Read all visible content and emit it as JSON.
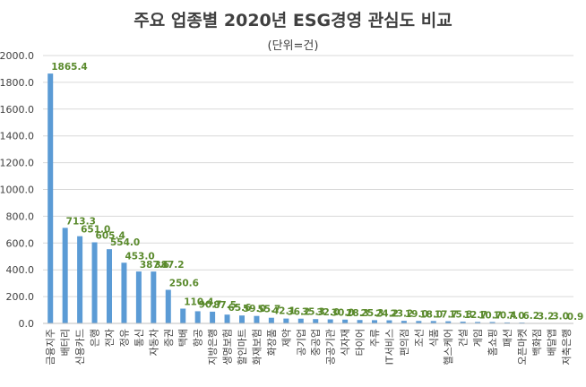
{
  "chart_data": {
    "type": "bar",
    "title": "주요 업종별 2020년 ESG경영 관심도 비교",
    "subtitle": "(단위=건)",
    "xlabel": "",
    "ylabel": "",
    "ylim": [
      0,
      2000
    ],
    "yticks": [
      "0.0",
      "200.0",
      "400.0",
      "600.0",
      "800.0",
      "1000.0",
      "1200.0",
      "1400.0",
      "1600.0",
      "1800.0",
      "2000.0"
    ],
    "grid": true,
    "legend": "none",
    "bar_color": "#5b9bd5",
    "label_color": "#5a8a2c",
    "categories": [
      "금융지주",
      "배터리",
      "신용카드",
      "은행",
      "전자",
      "정유",
      "통신",
      "자동차",
      "증권",
      "택배",
      "항공",
      "지방은행",
      "생명보험",
      "할인마트",
      "화재보험",
      "화장품",
      "제약",
      "공기업",
      "중공업",
      "공공기관",
      "식자재",
      "타이어",
      "주류",
      "IT서비스",
      "편의점",
      "조선",
      "식품",
      "헬스케어",
      "건설",
      "게임",
      "홈쇼핑",
      "패션",
      "오픈마켓",
      "백화점",
      "배달앱",
      "저축은행"
    ],
    "values": [
      1865.4,
      713.3,
      651.0,
      605.4,
      554.0,
      453.0,
      387.6,
      387.2,
      250.6,
      110.4,
      90.7,
      87.5,
      65.6,
      59.0,
      55.7,
      42.1,
      36.2,
      35.3,
      32.0,
      30.0,
      28.3,
      25.3,
      24.2,
      23.2,
      19.0,
      18.0,
      17.7,
      15.8,
      12.7,
      10.7,
      10.4,
      7.0,
      6.2,
      3.2,
      3.0,
      0.9
    ],
    "value_labels": [
      "1865.4",
      "713.3",
      "651.0",
      "605.4",
      "554.0",
      "453.0",
      "387.6",
      "387.2",
      "250.6",
      "110.4",
      "90.7",
      "87.5",
      "65.6",
      "59.0",
      "55.7",
      "42.1",
      "36.2",
      "35.3",
      "32.0",
      "30.0",
      "28.3",
      "25.3",
      "24.2",
      "23.2",
      "19.0",
      "18.0",
      "17.7",
      "15.8",
      "12.7",
      "10.7",
      "10.4",
      "7.0",
      "6.2",
      "3.2",
      "3.0",
      "0.9"
    ]
  }
}
